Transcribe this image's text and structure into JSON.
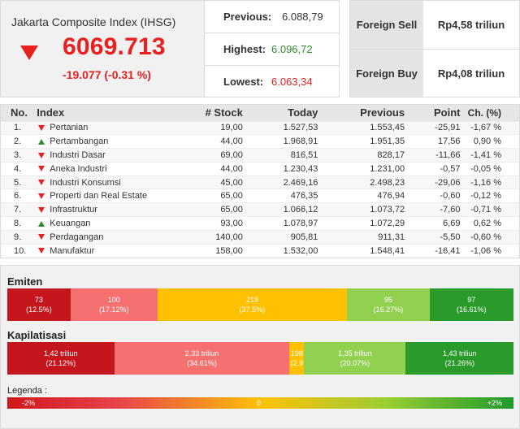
{
  "summary": {
    "title": "Jakarta Composite Index (IHSG)",
    "value": "6069.713",
    "change": "-19.077 (-0.31 %)",
    "direction_icon": "down-triangle-icon",
    "previous_label": "Previous:",
    "previous_value": "6.088,79",
    "highest_label": "Highest:",
    "highest_value": "6.096,72",
    "lowest_label": "Lowest:",
    "lowest_value": "6.063,34"
  },
  "foreign": {
    "sell_label": "Foreign Sell",
    "sell_value": "Rp4,58 triliun",
    "buy_label": "Foreign Buy",
    "buy_value": "Rp4,08 triliun"
  },
  "table": {
    "headers": [
      "No.",
      "Index",
      "# Stock",
      "Today",
      "Previous",
      "Point",
      "Ch. (%)"
    ],
    "rows": [
      {
        "no": "1.",
        "trend": "down",
        "name": "Pertanian",
        "stock": "19,00",
        "today": "1.527,53",
        "previous": "1.553,45",
        "point": "-25,91",
        "ch": "-1,67 %"
      },
      {
        "no": "2.",
        "trend": "up",
        "name": "Pertambangan",
        "stock": "44,00",
        "today": "1.968,91",
        "previous": "1.951,35",
        "point": "17,56",
        "ch": "0,90 %"
      },
      {
        "no": "3.",
        "trend": "down",
        "name": "Industri Dasar",
        "stock": "69,00",
        "today": "816,51",
        "previous": "828,17",
        "point": "-11,66",
        "ch": "-1,41 %"
      },
      {
        "no": "4.",
        "trend": "down",
        "name": "Aneka Industri",
        "stock": "44,00",
        "today": "1.230,43",
        "previous": "1.231,00",
        "point": "-0,57",
        "ch": "-0,05 %"
      },
      {
        "no": "5.",
        "trend": "down",
        "name": "Industri Konsumsi",
        "stock": "45,00",
        "today": "2.469,16",
        "previous": "2.498,23",
        "point": "-29,06",
        "ch": "-1,16 %"
      },
      {
        "no": "6.",
        "trend": "down",
        "name": "Properti dan Real Estate",
        "stock": "65,00",
        "today": "476,35",
        "previous": "476,94",
        "point": "-0,60",
        "ch": "-0,12 %"
      },
      {
        "no": "7.",
        "trend": "down",
        "name": "Infrastruktur",
        "stock": "65,00",
        "today": "1.066,12",
        "previous": "1.073,72",
        "point": "-7,60",
        "ch": "-0,71 %"
      },
      {
        "no": "8.",
        "trend": "up",
        "name": "Keuangan",
        "stock": "93,00",
        "today": "1.078,97",
        "previous": "1.072,29",
        "point": "6,69",
        "ch": "0,62 %"
      },
      {
        "no": "9.",
        "trend": "down",
        "name": "Perdagangan",
        "stock": "140,00",
        "today": "905,81",
        "previous": "911,31",
        "point": "-5,50",
        "ch": "-0,60 %"
      },
      {
        "no": "10.",
        "trend": "down",
        "name": "Manufaktur",
        "stock": "158,00",
        "today": "1.532,00",
        "previous": "1.548,41",
        "point": "-16,41",
        "ch": "-1,06 %"
      }
    ]
  },
  "emiten": {
    "title": "Emiten",
    "segments": [
      {
        "value": "73",
        "pct": "(12.5%)",
        "share": 12.5,
        "color": "#c4161c"
      },
      {
        "value": "100",
        "pct": "(17.12%)",
        "share": 17.12,
        "color": "#f4716f"
      },
      {
        "value": "219",
        "pct": "(37.5%)",
        "share": 37.5,
        "color": "#ffc000"
      },
      {
        "value": "95",
        "pct": "(16.27%)",
        "share": 16.27,
        "color": "#92d050"
      },
      {
        "value": "97",
        "pct": "(16.61%)",
        "share": 16.61,
        "color": "#2a9a2a"
      }
    ]
  },
  "kapitalisasi": {
    "title": "Kapilatisasi",
    "segments": [
      {
        "value": "1,42 triliun",
        "pct": "(21.12%)",
        "share": 21.12,
        "color": "#c4161c"
      },
      {
        "value": "2,33 triliun",
        "pct": "(34.61%)",
        "share": 34.61,
        "color": "#f4716f"
      },
      {
        "value": "198",
        "pct": "(2.9",
        "share": 2.9,
        "color": "#ffc000"
      },
      {
        "value": "1,35 triliun",
        "pct": "(20.07%)",
        "share": 20.07,
        "color": "#92d050"
      },
      {
        "value": "1,43 triliun",
        "pct": "(21.26%)",
        "share": 21.26,
        "color": "#2a9a2a"
      }
    ]
  },
  "legend": {
    "title": "Legenda :",
    "min": "-2%",
    "mid": "0",
    "max": "+2%"
  }
}
